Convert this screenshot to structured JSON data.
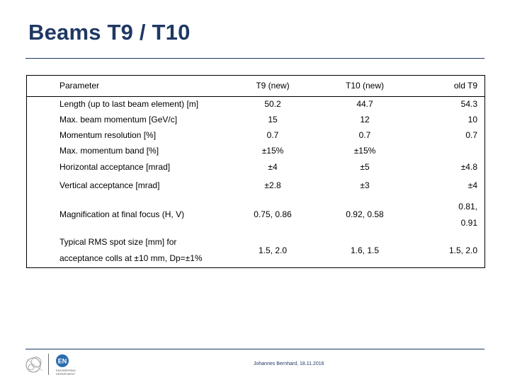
{
  "slide": {
    "title": "Beams T9 / T10"
  },
  "table": {
    "headers": {
      "parameter": "Parameter",
      "t9": "T9 (new)",
      "t10": "T10 (new)",
      "old": "old T9"
    },
    "rows": [
      {
        "parameter": "Length (up to last beam element) [m]",
        "t9": "50.2",
        "t10": "44.7",
        "old": "54.3"
      },
      {
        "parameter": "Max. beam momentum [GeV/c]",
        "t9": "15",
        "t10": "12",
        "old": "10"
      },
      {
        "parameter": "Momentum resolution [%]",
        "t9": "0.7",
        "t10": "0.7",
        "old": "0.7"
      },
      {
        "parameter": "Max. momentum band [%]",
        "t9": "±15%",
        "t10": "±15%",
        "old": ""
      },
      {
        "parameter": "Horizontal acceptance [mrad]",
        "t9": "±4",
        "t10": "±5",
        "old": "±4.8"
      },
      {
        "parameter": "Vertical acceptance [mrad]",
        "t9": "±2.8",
        "t10": "±3",
        "old": "±4"
      },
      {
        "parameter": "Magnification at final focus (H, V)",
        "t9": "0.75, 0.86",
        "t10": "0.92, 0.58",
        "old_line1": "0.81,",
        "old_line2": "0.91"
      },
      {
        "parameter_line1": "Typical RMS spot size [mm] for",
        "parameter_line2": "acceptance colls at ±10 mm, Dp=±1%",
        "t9": "1.5, 2.0",
        "t10": "1.6, 1.5",
        "old": "1.5, 2.0"
      }
    ]
  },
  "footer": {
    "author_date": "Johannes Bernhard, 18.11.2016",
    "en_logo_letters": "EN",
    "en_logo_caption_line1": "ENGINEERING",
    "en_logo_caption_line2": "DEPARTMENT"
  },
  "colors": {
    "title": "#1f3864",
    "rule": "#1f3864",
    "en_logo": "#2b6cb0",
    "cern_logo": "#9a9a9a"
  },
  "icons": {
    "cern_logo": "cern-logo-icon",
    "en_logo": "en-logo-icon"
  }
}
